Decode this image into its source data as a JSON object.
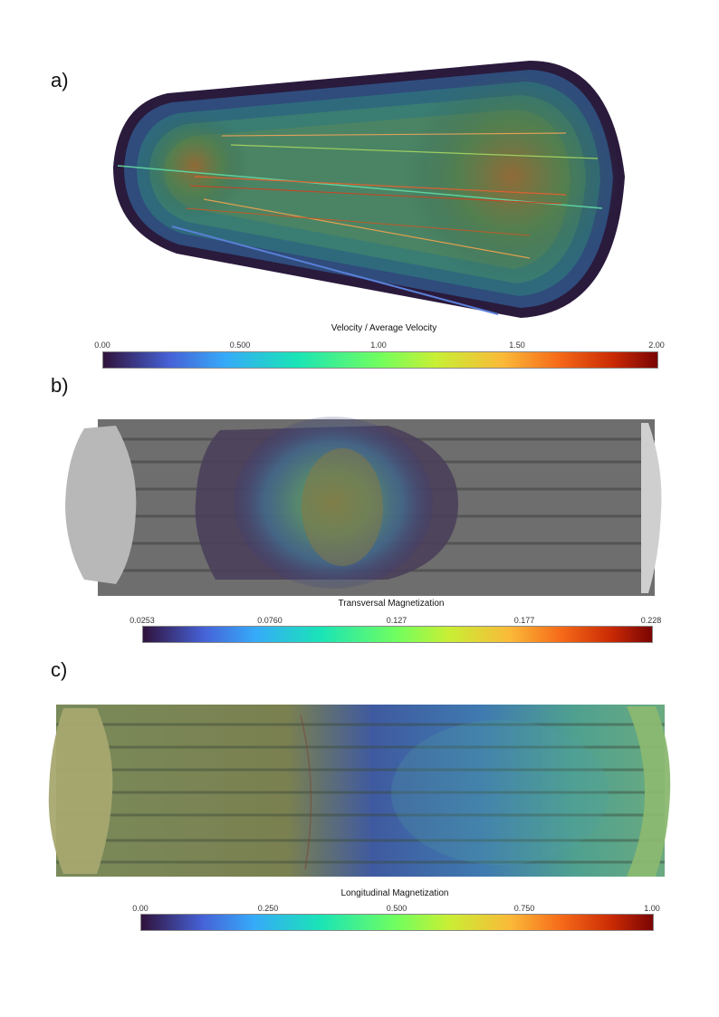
{
  "panels": [
    {
      "label": "a)",
      "colorbar": {
        "title": "Velocity / Average Velocity",
        "ticks": [
          "0.00",
          "0.500",
          "1.00",
          "1.50",
          "2.00"
        ]
      }
    },
    {
      "label": "b)",
      "colorbar": {
        "title": "Transversal Magnetization",
        "ticks": [
          "0.0253",
          "0.0760",
          "0.127",
          "0.177",
          "0.228"
        ]
      }
    },
    {
      "label": "c)",
      "colorbar": {
        "title": "Longitudinal Magnetization",
        "ticks": [
          "0.00",
          "0.250",
          "0.500",
          "0.750",
          "1.00"
        ]
      }
    }
  ],
  "colormap": "turbo"
}
